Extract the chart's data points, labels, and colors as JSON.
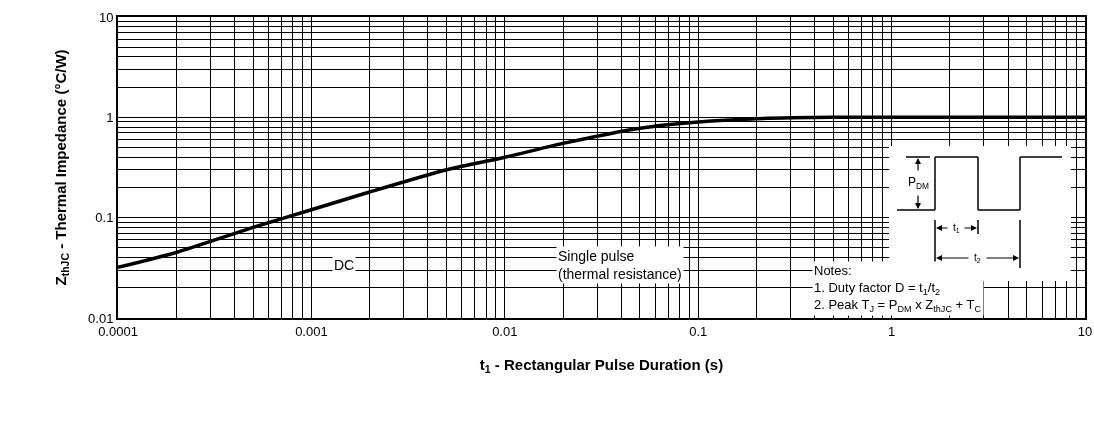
{
  "chart_data": {
    "type": "line",
    "xlabel": "t$_{1}$ - Rectangular Pulse Duration (s)",
    "ylabel": "Z$_{thJC}$ - Thermal Impedance (°C/W)",
    "log": "xy",
    "grid": true,
    "marker": "none",
    "line_style": "solid",
    "xlim": [
      0.0001,
      10
    ],
    "xticks": [
      0.0001,
      0.001,
      0.01,
      0.1,
      1,
      10
    ],
    "ylim": [
      0.01,
      10
    ],
    "yticks": [
      0.01,
      0.1,
      1,
      10
    ],
    "x": [
      0.0001,
      0.0002,
      0.0005,
      0.001,
      0.002,
      0.005,
      0.01,
      0.02,
      0.05,
      0.1,
      0.2,
      0.5,
      1,
      2,
      5,
      10
    ],
    "series": [
      {
        "color": "#000000",
        "values": [
          0.032,
          0.045,
          0.08,
          0.12,
          0.18,
          0.3,
          0.4,
          0.55,
          0.78,
          0.9,
          0.97,
          1.0,
          1.0,
          1.0,
          1.0,
          1.0
        ]
      }
    ],
    "annotations": [
      "DC",
      "Single pulse\n(thermal resistance)",
      "Notes:\n1. Duty factor D = t$_{1}$/t$_{2}$\n2. Peak T$_{J}$ = P$_{DM}$ x Z$_{thJC}$ + T$_{C}$",
      "P$_{DM}$",
      "t$_{1}$",
      "t$_{2}$"
    ]
  }
}
